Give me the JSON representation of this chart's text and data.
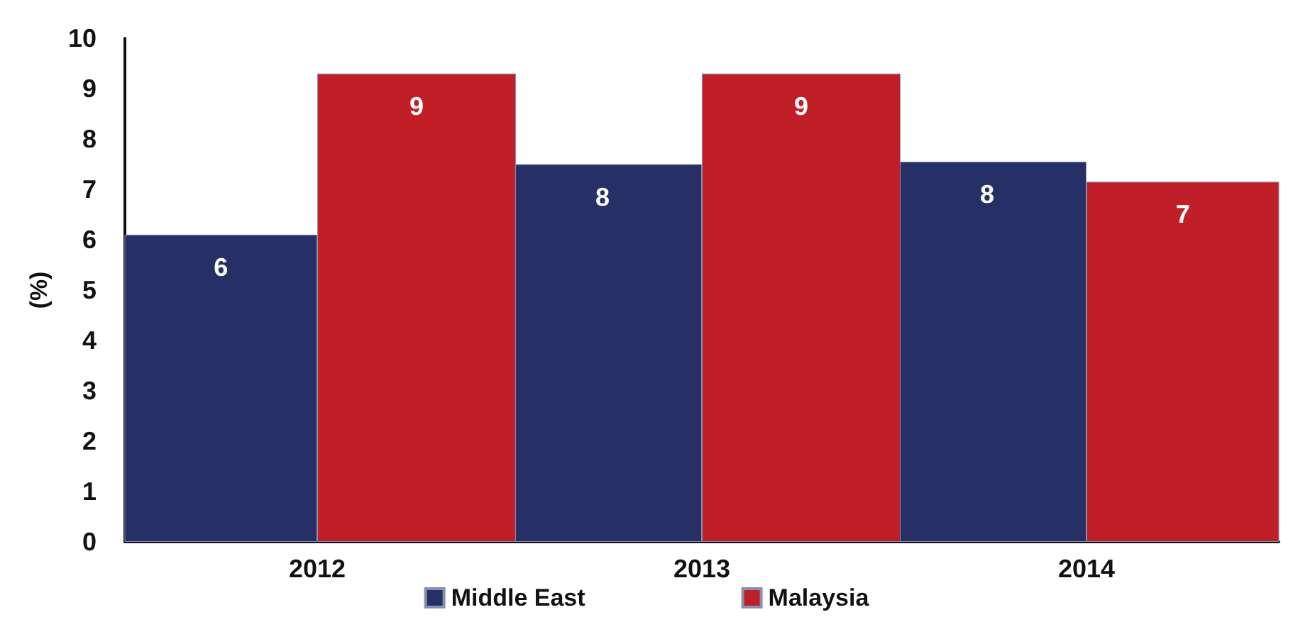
{
  "chart_data": {
    "type": "bar",
    "ylabel": "(%)",
    "categories": [
      "2012",
      "2013",
      "2014"
    ],
    "series": [
      {
        "name": "Middle East",
        "color": "#262f66",
        "values": [
          6.1,
          7.5,
          7.55
        ],
        "value_labels": [
          "6",
          "8",
          "8"
        ]
      },
      {
        "name": "Malaysia",
        "color": "#c01f27",
        "values": [
          9.3,
          9.3,
          7.15
        ],
        "value_labels": [
          "9",
          "9",
          "7"
        ]
      }
    ],
    "ylim": [
      0,
      10
    ],
    "yticks": [
      0,
      1,
      2,
      3,
      4,
      5,
      6,
      7,
      8,
      9,
      10
    ],
    "grid": false,
    "legend": "bottom"
  }
}
